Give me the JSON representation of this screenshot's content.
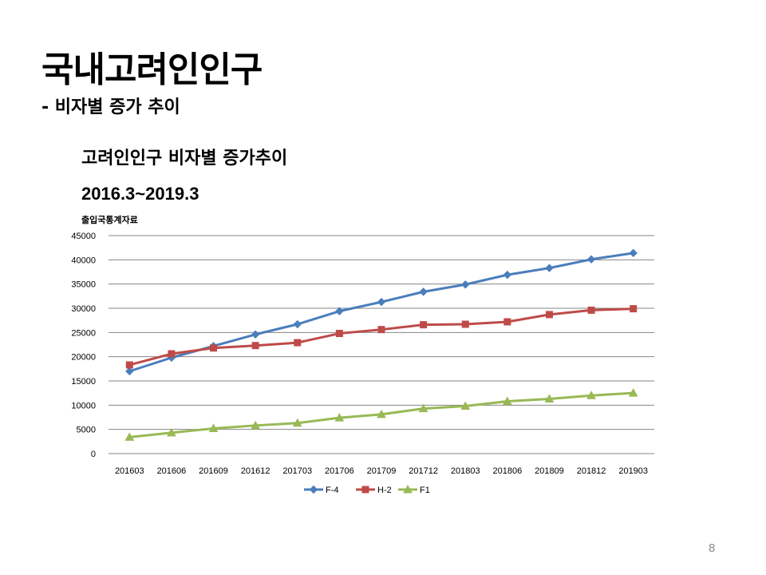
{
  "slide": {
    "title": "국내고려인인구",
    "subtitle": "- 비자별 증가 추이",
    "page_number": "8"
  },
  "chart_data": {
    "type": "line",
    "title": "고려인인구 비자별 증가추이",
    "subtitle": "2016.3~2019.3",
    "source_note": "출입국통계자료",
    "xlabel": "",
    "ylabel": "",
    "ylim": [
      0,
      45000
    ],
    "yticks": [
      0,
      5000,
      10000,
      15000,
      20000,
      25000,
      30000,
      35000,
      40000,
      45000
    ],
    "grid": true,
    "legend": "bottom",
    "categories": [
      "201603",
      "201606",
      "201609",
      "201612",
      "201703",
      "201706",
      "201709",
      "201712",
      "201803",
      "201806",
      "201809",
      "201812",
      "201903"
    ],
    "series": [
      {
        "name": "F-4",
        "color": "#4a7ebb",
        "marker": "diamond",
        "values": [
          17000,
          19800,
          22200,
          24600,
          26700,
          29400,
          31300,
          33400,
          34900,
          36900,
          38300,
          40100,
          41400
        ]
      },
      {
        "name": "H-2",
        "color": "#be4b48",
        "marker": "square",
        "values": [
          18300,
          20600,
          21800,
          22300,
          22900,
          24800,
          25600,
          26600,
          26700,
          27200,
          28700,
          29600,
          29900
        ]
      },
      {
        "name": "F1",
        "color": "#98b954",
        "marker": "triangle",
        "values": [
          3400,
          4300,
          5200,
          5800,
          6300,
          7400,
          8100,
          9300,
          9800,
          10800,
          11300,
          12000,
          12500
        ]
      }
    ]
  }
}
